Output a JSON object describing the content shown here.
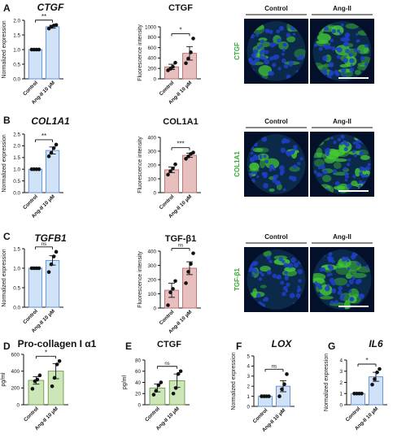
{
  "figure": {
    "panel_letters": [
      "A",
      "B",
      "C",
      "D",
      "E",
      "F",
      "G"
    ]
  },
  "style": {
    "control_fill": "#cfe2f7",
    "control_stroke": "#5b8fd6",
    "treat_fill_pink": "#e8bfbf",
    "treat_stroke_pink": "#b46a6a",
    "fill_green": "#cde6b8",
    "stroke_green": "#6c9a4a",
    "label_green": "#33aa33",
    "micro_bg": "#04102a",
    "nucleus": "#1f3fc7",
    "stain": "#44cc33"
  },
  "chart_data": [
    {
      "id": "A1",
      "type": "bar",
      "title": "CTGF",
      "title_italic": true,
      "ylabel": "Normalized expression",
      "ylim": [
        0,
        2.0
      ],
      "yticks": [
        "0.0",
        "0.5",
        "1.0",
        "1.5",
        "2.0"
      ],
      "categories": [
        "Control",
        "Ang-II 10 μM"
      ],
      "values": [
        1.0,
        1.78
      ],
      "errors": [
        0,
        0.05
      ],
      "points": [
        [
          1,
          1,
          1,
          1
        ],
        [
          1.72,
          1.78,
          1.82,
          1.84
        ]
      ],
      "significance": "**",
      "scheme": "blue"
    },
    {
      "id": "A2",
      "type": "bar",
      "title": "CTGF",
      "title_italic": false,
      "ylabel": "Fluorescence intensity",
      "ylim": [
        0,
        1000
      ],
      "yticks": [
        "0",
        "200",
        "400",
        "600",
        "800",
        "1000"
      ],
      "categories": [
        "Control",
        "Ang-II 10 μM"
      ],
      "values": [
        230,
        490
      ],
      "errors": [
        50,
        130
      ],
      "points": [
        [
          165,
          195,
          230,
          310
        ],
        [
          300,
          390,
          510,
          775
        ]
      ],
      "significance": "*",
      "scheme": "pink"
    },
    {
      "id": "B1",
      "type": "bar",
      "title": "COL1A1",
      "title_italic": true,
      "ylabel": "Normalized expression",
      "ylim": [
        0,
        2.5
      ],
      "yticks": [
        "0.0",
        "0.5",
        "1.0",
        "1.5",
        "2.0",
        "2.5"
      ],
      "categories": [
        "Control",
        "Ang-II 10 μM"
      ],
      "values": [
        1.0,
        1.8
      ],
      "errors": [
        0,
        0.15
      ],
      "points": [
        [
          1,
          1,
          1,
          1
        ],
        [
          1.55,
          1.7,
          1.9,
          2.05
        ]
      ],
      "significance": "**",
      "scheme": "blue"
    },
    {
      "id": "B2",
      "type": "bar",
      "title": "COL1A1",
      "title_italic": false,
      "ylabel": "Fluorescence intensity",
      "ylim": [
        0,
        400
      ],
      "yticks": [
        "0",
        "100",
        "200",
        "300",
        "400"
      ],
      "categories": [
        "Control",
        "Ang-II 10 μM"
      ],
      "values": [
        165,
        270
      ],
      "errors": [
        20,
        15
      ],
      "points": [
        [
          130,
          155,
          175,
          205
        ],
        [
          245,
          262,
          280,
          290
        ]
      ],
      "significance": "***",
      "scheme": "pink"
    },
    {
      "id": "C1",
      "type": "bar",
      "title": "TGFB1",
      "title_italic": true,
      "ylabel": "Normalized expression",
      "ylim": [
        0,
        1.5
      ],
      "yticks": [
        "0.0",
        "0.5",
        "1.0",
        "1.5"
      ],
      "categories": [
        "Control",
        "Ang-II 10 μM"
      ],
      "values": [
        1.0,
        1.2
      ],
      "errors": [
        0,
        0.12
      ],
      "points": [
        [
          1,
          1,
          1,
          1
        ],
        [
          0.9,
          1.1,
          1.3,
          1.42
        ]
      ],
      "significance": "ns",
      "scheme": "blue"
    },
    {
      "id": "C2",
      "type": "bar",
      "title": "TGF-β1",
      "title_italic": false,
      "ylabel": "Fluorescence intensity",
      "ylim": [
        0,
        400
      ],
      "yticks": [
        "0",
        "100",
        "200",
        "300",
        "400"
      ],
      "categories": [
        "Control",
        "Ang-II 10 μM"
      ],
      "values": [
        125,
        280
      ],
      "errors": [
        50,
        45
      ],
      "points": [
        [
          20,
          110,
          135,
          190
        ],
        [
          175,
          255,
          310,
          385
        ]
      ],
      "significance": "ns",
      "scheme": "pink"
    },
    {
      "id": "D",
      "type": "bar",
      "title": "Pro-collagen I α1",
      "title_italic": false,
      "ylabel": "pg/ml",
      "ylim": [
        0,
        600
      ],
      "yticks": [
        "0",
        "200",
        "400",
        "600"
      ],
      "categories": [
        "Control",
        "Ang-II 10 μM"
      ],
      "values": [
        290,
        400
      ],
      "errors": [
        45,
        90
      ],
      "points": [
        [
          190,
          280,
          300,
          350
        ],
        [
          220,
          320,
          480,
          520
        ]
      ],
      "significance": "*",
      "scheme": "green"
    },
    {
      "id": "E",
      "type": "bar",
      "title": "CTGF",
      "title_italic": false,
      "ylabel": "pg/ml",
      "ylim": [
        0,
        80
      ],
      "yticks": [
        "0",
        "20",
        "40",
        "60",
        "80"
      ],
      "categories": [
        "Control",
        "Ang-II 10 μM"
      ],
      "values": [
        30,
        43
      ],
      "errors": [
        7,
        12
      ],
      "points": [
        [
          18,
          25,
          35,
          40
        ],
        [
          20,
          30,
          55,
          60
        ]
      ],
      "significance": "ns",
      "scheme": "green"
    },
    {
      "id": "F",
      "type": "bar",
      "title": "LOX",
      "title_italic": true,
      "ylabel": "Normalized expression",
      "ylim": [
        0,
        5
      ],
      "yticks": [
        "0",
        "1",
        "2",
        "3",
        "4",
        "5"
      ],
      "categories": [
        "Control",
        "Ang-II 10 μM"
      ],
      "values": [
        1.0,
        2.0
      ],
      "errors": [
        0,
        0.55
      ],
      "points": [
        [
          1,
          1,
          1,
          1
        ],
        [
          1.0,
          1.7,
          2.2,
          3.2
        ]
      ],
      "significance": "ns",
      "scheme": "blue"
    },
    {
      "id": "G",
      "type": "bar",
      "title": "IL6",
      "title_italic": true,
      "ylabel": "Normalized expression",
      "ylim": [
        0,
        4
      ],
      "yticks": [
        "0",
        "1",
        "2",
        "3",
        "4"
      ],
      "categories": [
        "Control",
        "Ang-II 10 μM"
      ],
      "values": [
        1.0,
        2.5
      ],
      "errors": [
        0,
        0.4
      ],
      "points": [
        [
          1,
          1,
          1,
          1
        ],
        [
          1.8,
          2.3,
          2.9,
          3.2
        ]
      ],
      "significance": "*",
      "scheme": "blue"
    }
  ],
  "micrographs": [
    {
      "id": "A",
      "stain_label": "CTGF",
      "col_labels": [
        "Control",
        "Ang-II"
      ],
      "intensity": [
        0.45,
        0.75
      ],
      "seed": 11
    },
    {
      "id": "B",
      "stain_label": "COL1A1",
      "col_labels": [
        "Control",
        "Ang-II"
      ],
      "intensity": [
        0.35,
        0.8
      ],
      "seed": 23
    },
    {
      "id": "C",
      "stain_label": "TGF-β1",
      "col_labels": [
        "Control",
        "Ang-II"
      ],
      "intensity": [
        0.25,
        0.6
      ],
      "seed": 37
    }
  ]
}
